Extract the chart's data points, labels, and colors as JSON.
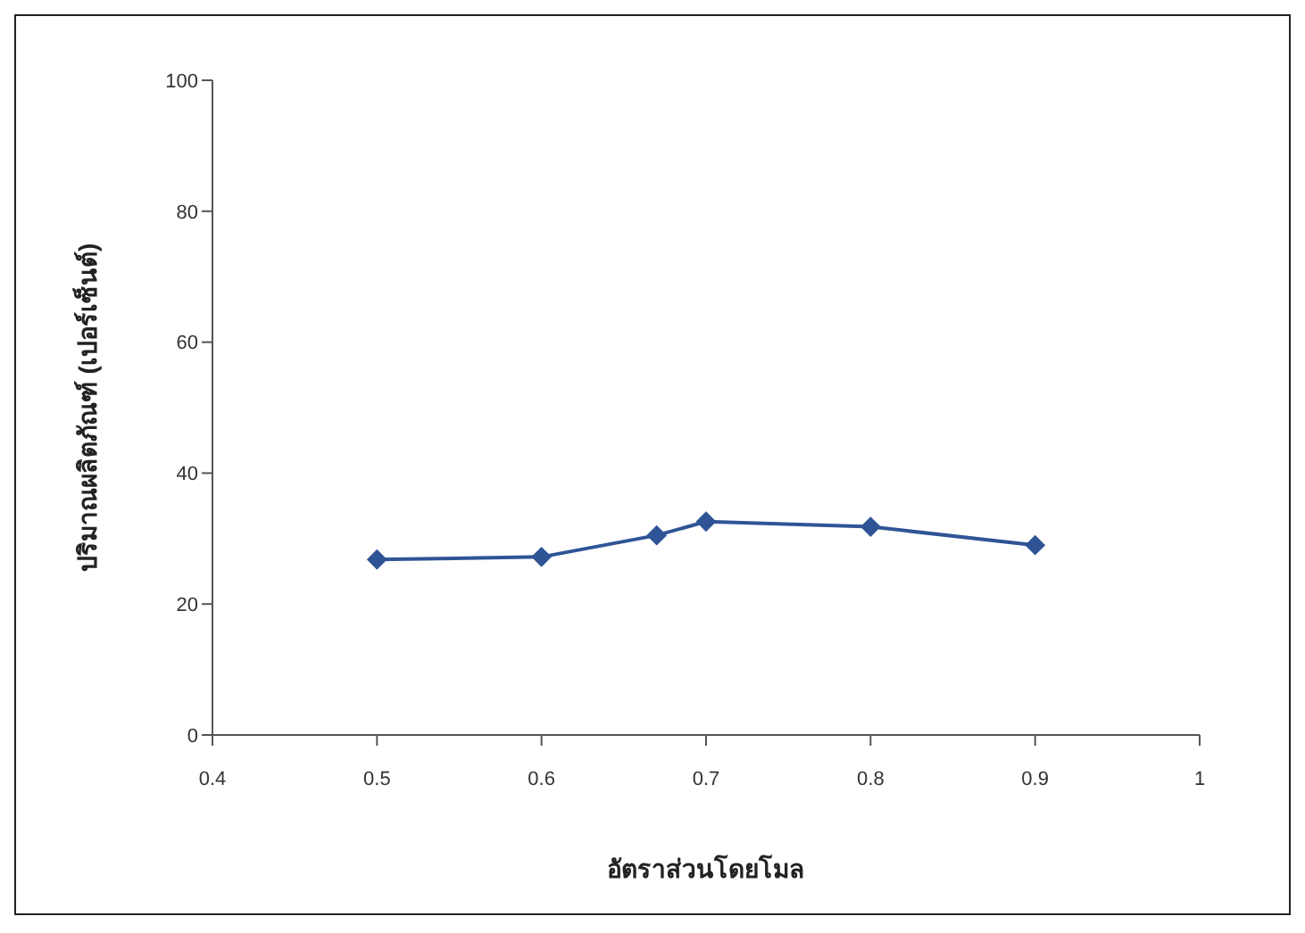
{
  "chart_data": {
    "type": "line",
    "xlabel": "อัตราส่วนโดยโมล",
    "ylabel": "ปริมาณผลิตภัณฑ์ (เปอร์เซ็นต์)",
    "x": [
      0.5,
      0.6,
      0.67,
      0.7,
      0.8,
      0.9
    ],
    "series": [
      {
        "color": "#2f5496",
        "values": [
          26.8,
          27.2,
          30.5,
          32.6,
          31.8,
          29.0
        ]
      }
    ],
    "xlim": [
      0.4,
      1
    ],
    "xticks": [
      0.4,
      0.5,
      0.6,
      0.7,
      0.8,
      0.9,
      1
    ],
    "ylim": [
      0,
      100
    ],
    "yticks": [
      0,
      20,
      40,
      60,
      80,
      100
    ],
    "grid": false,
    "legend": false,
    "marker": "diamond",
    "line_style": "solid"
  }
}
